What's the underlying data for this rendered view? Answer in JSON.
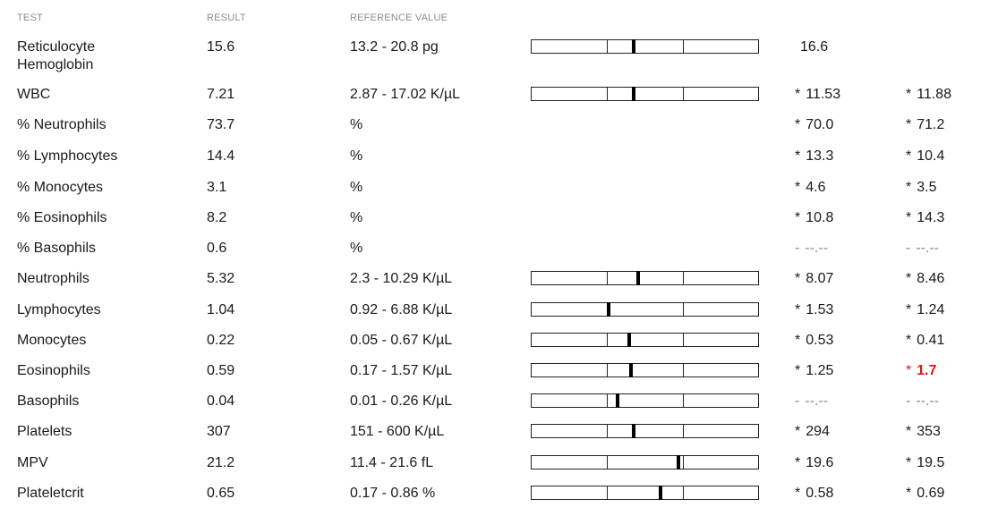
{
  "headers": {
    "test": "TEST",
    "result": "RESULT",
    "reference": "REFERENCE VALUE"
  },
  "flag_color": "#e0161b",
  "rows": [
    {
      "test": "Reticulocyte Hemoglobin",
      "result": "15.6",
      "reference": "13.2 - 20.8 pg",
      "bar_position": 0.45,
      "prev1": "16.6",
      "prev1_flag": "",
      "prev2": "",
      "prev2_flag": ""
    },
    {
      "test": "WBC",
      "result": "7.21",
      "reference": "2.87 - 17.02 K/µL",
      "bar_position": 0.45,
      "prev1": "11.53",
      "prev1_flag": "*",
      "prev2": "11.88",
      "prev2_flag": "*"
    },
    {
      "test": "% Neutrophils",
      "result": "73.7",
      "reference": "%",
      "prev1": "70.0",
      "prev1_flag": "*",
      "prev2": "71.2",
      "prev2_flag": "*"
    },
    {
      "test": "% Lymphocytes",
      "result": "14.4",
      "reference": "%",
      "prev1": "13.3",
      "prev1_flag": "*",
      "prev2": "10.4",
      "prev2_flag": "*"
    },
    {
      "test": "% Monocytes",
      "result": "3.1",
      "reference": "%",
      "prev1": "4.6",
      "prev1_flag": "*",
      "prev2": "3.5",
      "prev2_flag": "*"
    },
    {
      "test": "% Eosinophils",
      "result": "8.2",
      "reference": "%",
      "prev1": "10.8",
      "prev1_flag": "*",
      "prev2": "14.3",
      "prev2_flag": "*"
    },
    {
      "test": "% Basophils",
      "result": "0.6",
      "reference": "%",
      "prev1": "--.--",
      "prev1_flag": "-",
      "prev2": "--.--",
      "prev2_flag": "-"
    },
    {
      "test": "Neutrophils",
      "result": "5.32",
      "reference": "2.3 - 10.29 K/µL",
      "bar_position": 0.47,
      "prev1": "8.07",
      "prev1_flag": "*",
      "prev2": "8.46",
      "prev2_flag": "*"
    },
    {
      "test": "Lymphocytes",
      "result": "1.04",
      "reference": "0.92 - 6.88 K/µL",
      "bar_position": 0.34,
      "prev1": "1.53",
      "prev1_flag": "*",
      "prev2": "1.24",
      "prev2_flag": "*"
    },
    {
      "test": "Monocytes",
      "result": "0.22",
      "reference": "0.05 - 0.67 K/µL",
      "bar_position": 0.43,
      "prev1": "0.53",
      "prev1_flag": "*",
      "prev2": "0.41",
      "prev2_flag": "*"
    },
    {
      "test": "Eosinophils",
      "result": "0.59",
      "reference": "0.17 - 1.57 K/µL",
      "bar_position": 0.44,
      "prev1": "1.25",
      "prev1_flag": "*",
      "prev2": "1.7",
      "prev2_flag": "*",
      "prev2_highlight": true
    },
    {
      "test": "Basophils",
      "result": "0.04",
      "reference": "0.01 - 0.26 K/µL",
      "bar_position": 0.38,
      "prev1": "--.--",
      "prev1_flag": "-",
      "prev2": "--.--",
      "prev2_flag": "-"
    },
    {
      "test": "Platelets",
      "result": "307",
      "reference": "151 - 600 K/µL",
      "bar_position": 0.45,
      "prev1": "294",
      "prev1_flag": "*",
      "prev2": "353",
      "prev2_flag": "*"
    },
    {
      "test": "MPV",
      "result": "21.2",
      "reference": "11.4 - 21.6 fL",
      "bar_position": 0.65,
      "prev1": "19.6",
      "prev1_flag": "*",
      "prev2": "19.5",
      "prev2_flag": "*"
    },
    {
      "test": "Plateletcrit",
      "result": "0.65",
      "reference": "0.17 - 0.86 %",
      "bar_position": 0.57,
      "prev1": "0.58",
      "prev1_flag": "*",
      "prev2": "0.69",
      "prev2_flag": "*"
    }
  ]
}
